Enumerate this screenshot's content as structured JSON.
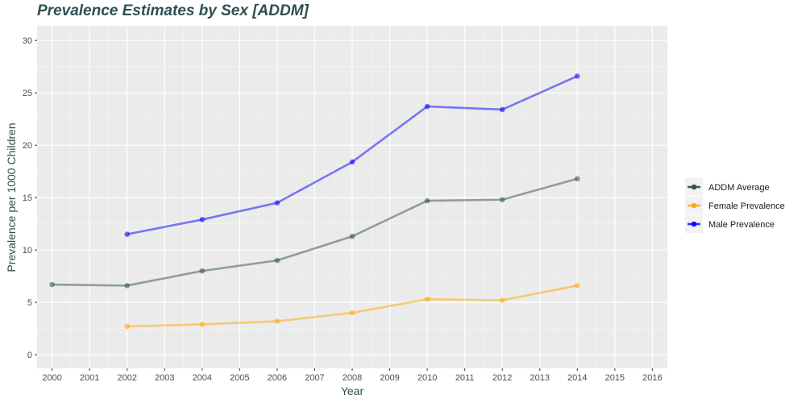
{
  "chart_data": {
    "type": "line",
    "title": "Prevalence Estimates by Sex [ADDM]",
    "xlabel": "Year",
    "ylabel": "Prevalence per 1000 Children",
    "xlim": [
      1999.6,
      2016.4
    ],
    "ylim": [
      -1.3,
      31.4
    ],
    "x_ticks": [
      2000,
      2001,
      2002,
      2003,
      2004,
      2005,
      2006,
      2007,
      2008,
      2009,
      2010,
      2011,
      2012,
      2013,
      2014,
      2015,
      2016
    ],
    "y_ticks": [
      0,
      5,
      10,
      15,
      20,
      25,
      30
    ],
    "grid": true,
    "legend_position": "right",
    "series": [
      {
        "name": "ADDM Average",
        "color": "#2f4f4f",
        "x": [
          2000,
          2002,
          2004,
          2006,
          2008,
          2010,
          2012,
          2014
        ],
        "y": [
          6.7,
          6.6,
          8.0,
          9.0,
          11.3,
          14.7,
          14.8,
          16.8
        ]
      },
      {
        "name": "Female Prevalence",
        "color": "#ffa500",
        "x": [
          2002,
          2004,
          2006,
          2008,
          2010,
          2012,
          2014
        ],
        "y": [
          2.7,
          2.9,
          3.2,
          4.0,
          5.3,
          5.2,
          6.6
        ]
      },
      {
        "name": "Male Prevalence",
        "color": "#0000ff",
        "x": [
          2002,
          2004,
          2006,
          2008,
          2010,
          2012,
          2014
        ],
        "y": [
          11.5,
          12.9,
          14.5,
          18.4,
          23.7,
          23.4,
          26.6
        ]
      }
    ]
  }
}
